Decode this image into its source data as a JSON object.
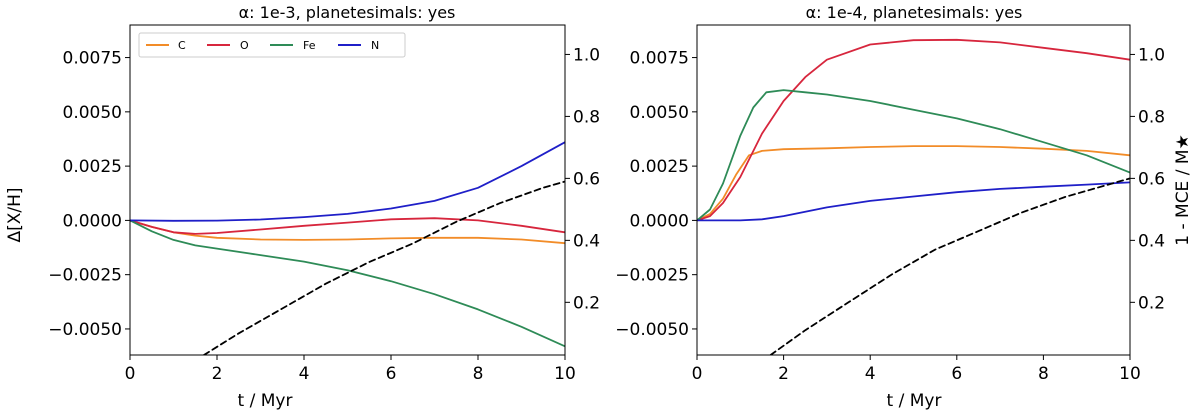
{
  "chart_data": [
    {
      "type": "line",
      "title": "α: 1e-3, planetesimals: yes",
      "xlabel": "t / Myr",
      "ylabel": "Δ[X/H]",
      "y2label": "",
      "xlim": [
        0,
        10
      ],
      "ylim": [
        -0.0062,
        0.009
      ],
      "y2lim": [
        0.03,
        1.095
      ],
      "xticks": [
        "0",
        "2",
        "4",
        "6",
        "8",
        "10"
      ],
      "xtick_values": [
        0,
        2,
        4,
        6,
        8,
        10
      ],
      "yticks": [
        "−0.0050",
        "−0.0025",
        "0.0000",
        "0.0025",
        "0.0050",
        "0.0075"
      ],
      "ytick_values": [
        -0.005,
        -0.0025,
        0,
        0.0025,
        0.005,
        0.0075
      ],
      "y2ticks": [
        "0.2",
        "0.4",
        "0.6",
        "0.8",
        "1.0"
      ],
      "y2tick_values": [
        0.2,
        0.4,
        0.6,
        0.8,
        1.0
      ],
      "legend": {
        "placement": "top-left",
        "entries": [
          "C",
          "O",
          "Fe",
          "N"
        ]
      },
      "grid": false,
      "series": [
        {
          "name": "C",
          "color": "#f28c28",
          "axis": "left",
          "x": [
            0,
            0.5,
            1,
            1.5,
            2,
            3,
            4,
            5,
            6,
            7,
            8,
            9,
            10
          ],
          "y": [
            0,
            -0.0003,
            -0.00055,
            -0.0007,
            -0.0008,
            -0.00088,
            -0.0009,
            -0.00088,
            -0.00083,
            -0.0008,
            -0.0008,
            -0.00088,
            -0.00105
          ]
        },
        {
          "name": "O",
          "color": "#d7263d",
          "axis": "left",
          "x": [
            0,
            0.5,
            1,
            1.5,
            2,
            3,
            4,
            5,
            6,
            7,
            8,
            9,
            10
          ],
          "y": [
            0,
            -0.0003,
            -0.00055,
            -0.00062,
            -0.00058,
            -0.00042,
            -0.00025,
            -0.0001,
            5e-05,
            0.0001,
            0,
            -0.00025,
            -0.00055
          ]
        },
        {
          "name": "Fe",
          "color": "#2e8b57",
          "axis": "left",
          "x": [
            0,
            0.5,
            1,
            1.5,
            2,
            3,
            4,
            5,
            6,
            7,
            8,
            9,
            10
          ],
          "y": [
            0,
            -0.0005,
            -0.0009,
            -0.00115,
            -0.0013,
            -0.0016,
            -0.0019,
            -0.0023,
            -0.0028,
            -0.0034,
            -0.0041,
            -0.0049,
            -0.0058
          ]
        },
        {
          "name": "N",
          "color": "#1f1fc8",
          "axis": "left",
          "x": [
            0,
            1,
            2,
            3,
            4,
            5,
            6,
            7,
            8,
            9,
            10
          ],
          "y": [
            0,
            -2e-05,
            -1e-05,
            4e-05,
            0.00015,
            0.0003,
            0.00055,
            0.0009,
            0.0015,
            0.0025,
            0.0036
          ]
        },
        {
          "name": "",
          "color": "#000000",
          "axis": "right",
          "dashed": true,
          "x": [
            1.7,
            2.5,
            3.5,
            4.5,
            5.5,
            6.5,
            7.5,
            8.5,
            9.5,
            10
          ],
          "y": [
            0.03,
            0.1,
            0.18,
            0.26,
            0.33,
            0.39,
            0.46,
            0.52,
            0.57,
            0.59
          ]
        }
      ]
    },
    {
      "type": "line",
      "title": "α: 1e-4, planetesimals: yes",
      "xlabel": "t / Myr",
      "ylabel": "",
      "y2label": "1 - MCE / M★",
      "xlim": [
        0,
        10
      ],
      "ylim": [
        -0.0062,
        0.009
      ],
      "y2lim": [
        0.03,
        1.095
      ],
      "xticks": [
        "0",
        "2",
        "4",
        "6",
        "8",
        "10"
      ],
      "xtick_values": [
        0,
        2,
        4,
        6,
        8,
        10
      ],
      "yticks": [
        "−0.0050",
        "−0.0025",
        "0.0000",
        "0.0025",
        "0.0050",
        "0.0075"
      ],
      "ytick_values": [
        -0.005,
        -0.0025,
        0,
        0.0025,
        0.005,
        0.0075
      ],
      "y2ticks": [
        "0.2",
        "0.4",
        "0.6",
        "0.8",
        "1.0"
      ],
      "y2tick_values": [
        0.2,
        0.4,
        0.6,
        0.8,
        1.0
      ],
      "grid": false,
      "series": [
        {
          "name": "C",
          "color": "#f28c28",
          "axis": "left",
          "x": [
            0,
            0.3,
            0.6,
            0.9,
            1.2,
            1.5,
            2,
            3,
            4,
            5,
            6,
            7,
            8,
            9,
            10
          ],
          "y": [
            0,
            0.0003,
            0.001,
            0.0021,
            0.003,
            0.0032,
            0.00328,
            0.00332,
            0.00338,
            0.00342,
            0.00342,
            0.00338,
            0.0033,
            0.0032,
            0.003
          ]
        },
        {
          "name": "O",
          "color": "#d7263d",
          "axis": "left",
          "x": [
            0,
            0.3,
            0.6,
            1,
            1.5,
            2,
            2.5,
            3,
            4,
            5,
            6,
            7,
            8,
            9,
            10
          ],
          "y": [
            0,
            0.0002,
            0.0008,
            0.002,
            0.004,
            0.0055,
            0.0066,
            0.0074,
            0.0081,
            0.0083,
            0.00832,
            0.0082,
            0.00795,
            0.0077,
            0.0074
          ]
        },
        {
          "name": "Fe",
          "color": "#2e8b57",
          "axis": "left",
          "x": [
            0,
            0.3,
            0.6,
            1,
            1.3,
            1.6,
            2,
            2.5,
            3,
            4,
            5,
            6,
            7,
            8,
            9,
            10
          ],
          "y": [
            0,
            0.0005,
            0.0017,
            0.0039,
            0.0052,
            0.0059,
            0.006,
            0.0059,
            0.0058,
            0.0055,
            0.0051,
            0.0047,
            0.0042,
            0.0036,
            0.003,
            0.0022
          ]
        },
        {
          "name": "N",
          "color": "#1f1fc8",
          "axis": "left",
          "x": [
            0,
            1,
            1.5,
            2,
            3,
            4,
            5,
            6,
            7,
            8,
            9,
            10
          ],
          "y": [
            0,
            0,
            5e-05,
            0.0002,
            0.0006,
            0.0009,
            0.0011,
            0.0013,
            0.00145,
            0.00155,
            0.00165,
            0.00175
          ]
        },
        {
          "name": "",
          "color": "#000000",
          "axis": "right",
          "dashed": true,
          "x": [
            1.7,
            2.5,
            3.5,
            4.5,
            5.5,
            6.5,
            7.5,
            8.5,
            9.5,
            10
          ],
          "y": [
            0.03,
            0.11,
            0.2,
            0.29,
            0.37,
            0.43,
            0.49,
            0.54,
            0.58,
            0.6
          ]
        }
      ]
    }
  ]
}
